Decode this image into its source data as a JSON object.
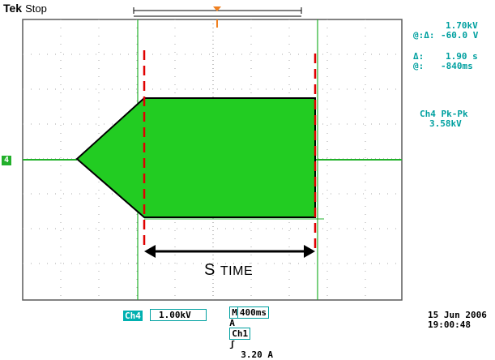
{
  "header": {
    "brand": "Tek",
    "status": "Stop"
  },
  "readouts": {
    "delta_v_label": "Δ:",
    "delta_v_value": "1.70kV",
    "at_v_label": "@:",
    "at_v_value": "-60.0 V",
    "delta_t_label": "Δ:",
    "delta_t_value": "1.90 s",
    "at_t_label": "@:",
    "at_t_value": "-840ms",
    "measure_label": "Ch4 Pk-Pk",
    "measure_value": "3.58kV"
  },
  "annotation": {
    "s": "S",
    "time": "TIME"
  },
  "bottom": {
    "timebase_label": "M",
    "timebase_value": "400ms",
    "trigger_mode": "A",
    "trigger_channel": "Ch1",
    "trigger_slope": "ʃ",
    "trigger_level": "3.20 A",
    "channel_badge": "Ch4",
    "channel_scale": "1.00kV",
    "date": "15 Jun 2006",
    "time": "19:00:48"
  },
  "channel_marker": "4",
  "colors": {
    "trace": "#22b02b",
    "cursor": "#e00000",
    "grid": "#9a9a9a",
    "readout": "#00a0a0",
    "fill": "#22cc22"
  }
}
